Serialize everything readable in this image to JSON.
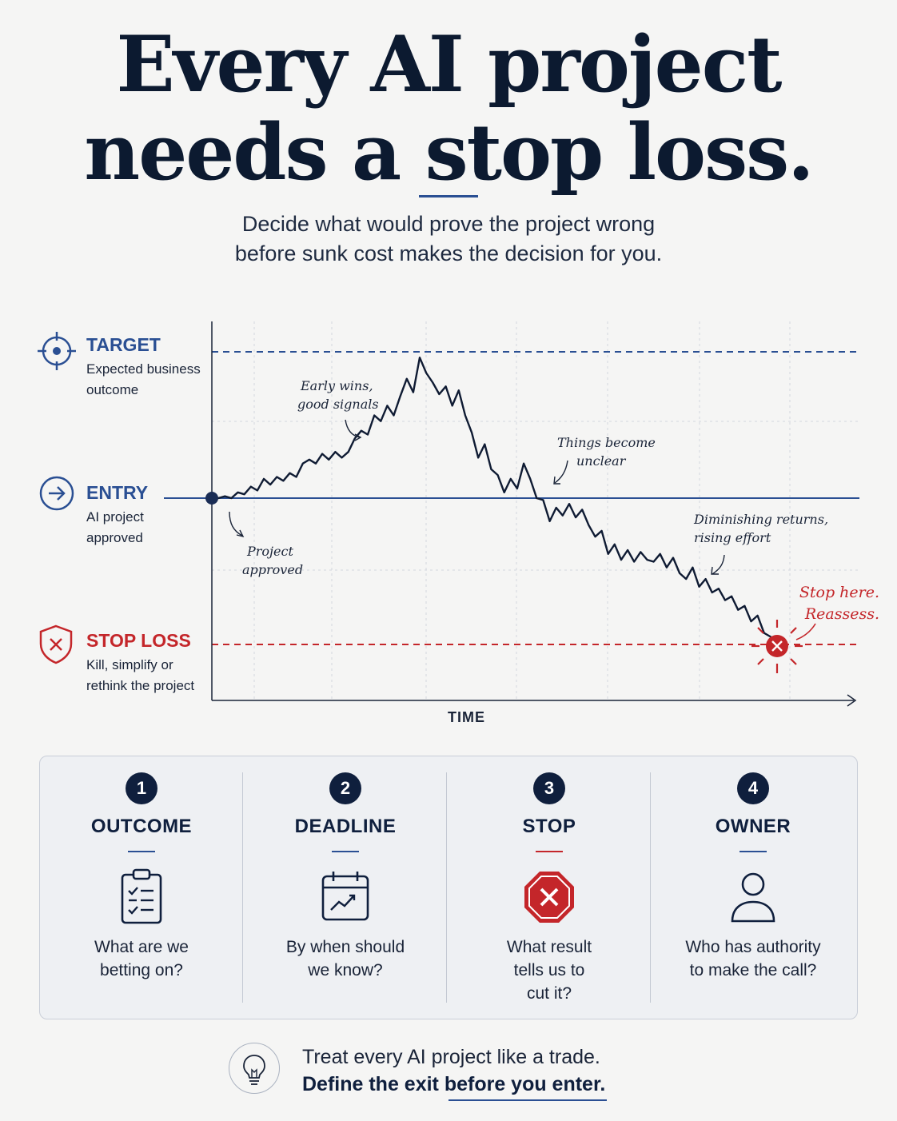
{
  "title_line1": "Every AI project",
  "title_line2": "needs a stop loss.",
  "subtitle_line1": "Decide what would prove the project wrong",
  "subtitle_line2": "before sunk cost makes the decision for you.",
  "levels": {
    "target": {
      "title": "TARGET",
      "desc1": "Expected business",
      "desc2": "outcome",
      "icon": "target-icon"
    },
    "entry": {
      "title": "ENTRY",
      "desc1": "AI project",
      "desc2": "approved",
      "icon": "arrow-right-circle-icon"
    },
    "stop": {
      "title": "STOP LOSS",
      "desc1": "Kill, simplify or",
      "desc2": "rethink the project",
      "icon": "shield-x-icon"
    }
  },
  "annotations": {
    "early1": "Early wins,",
    "early2": "good signals",
    "unclear1": "Things become",
    "unclear2": "unclear",
    "approved1": "Project",
    "approved2": "approved",
    "diminish1": "Diminishing returns,",
    "diminish2": "rising effort",
    "stop1": "Stop here.",
    "stop2": "Reassess."
  },
  "chart_data": {
    "type": "line",
    "xlabel": "TIME",
    "ylabel": "",
    "x": [
      0,
      1,
      2,
      3,
      4,
      5,
      6,
      7,
      8,
      9,
      10,
      11,
      12,
      13,
      14,
      15,
      16,
      17,
      18,
      19,
      20,
      21,
      22,
      23,
      24,
      25,
      26,
      27,
      28,
      29,
      30,
      31,
      32,
      33,
      34,
      35,
      36,
      37,
      38,
      39,
      40,
      41,
      42,
      43,
      44,
      45,
      46,
      47,
      48,
      49,
      50,
      51,
      52,
      53,
      54,
      55,
      56,
      57,
      58,
      59,
      60,
      61,
      62,
      63,
      64,
      65,
      66,
      67,
      68,
      69,
      70,
      71,
      72,
      73,
      74,
      75,
      76,
      77,
      78,
      79,
      80,
      81,
      82,
      83,
      84,
      85,
      86,
      87
    ],
    "values": [
      0.0,
      0.0,
      0.01,
      0.0,
      0.03,
      0.02,
      0.06,
      0.04,
      0.1,
      0.07,
      0.11,
      0.09,
      0.13,
      0.11,
      0.18,
      0.2,
      0.18,
      0.23,
      0.2,
      0.24,
      0.21,
      0.24,
      0.31,
      0.35,
      0.33,
      0.43,
      0.4,
      0.48,
      0.43,
      0.53,
      0.62,
      0.55,
      0.73,
      0.65,
      0.6,
      0.54,
      0.58,
      0.48,
      0.56,
      0.43,
      0.34,
      0.21,
      0.28,
      0.15,
      0.12,
      0.03,
      0.1,
      0.05,
      0.18,
      0.1,
      0.0,
      -0.01,
      -0.12,
      -0.05,
      -0.09,
      -0.03,
      -0.1,
      -0.06,
      -0.14,
      -0.2,
      -0.17,
      -0.29,
      -0.24,
      -0.32,
      -0.27,
      -0.33,
      -0.28,
      -0.32,
      -0.33,
      -0.29,
      -0.36,
      -0.31,
      -0.39,
      -0.42,
      -0.36,
      -0.46,
      -0.42,
      -0.49,
      -0.47,
      -0.53,
      -0.51,
      -0.58,
      -0.56,
      -0.64,
      -0.61,
      -0.7,
      -0.72,
      -0.76
    ],
    "reference_lines": {
      "target": 0.76,
      "entry": 0.0,
      "stop_loss": -0.76
    },
    "ylim": [
      -1.0,
      1.0
    ],
    "grid": true,
    "legend": "none"
  },
  "steps": [
    {
      "num": "1",
      "title": "OUTCOME",
      "icon": "clipboard-checklist-icon",
      "text1": "What are we",
      "text2": "betting on?",
      "text3": ""
    },
    {
      "num": "2",
      "title": "DEADLINE",
      "icon": "calendar-trend-icon",
      "text1": "By when should",
      "text2": "we know?",
      "text3": ""
    },
    {
      "num": "3",
      "title": "STOP",
      "icon": "stop-sign-icon",
      "text1": "What result",
      "text2": "tells us to",
      "text3": "cut it?"
    },
    {
      "num": "4",
      "title": "OWNER",
      "icon": "person-icon",
      "text1": "Who has authority",
      "text2": "to make the call?",
      "text3": ""
    }
  ],
  "footer": {
    "line1": "Treat every AI project like a trade.",
    "line2": "Define the exit before you enter.",
    "icon": "lightbulb-icon"
  },
  "colors": {
    "navy": "#0f1f3d",
    "blue": "#2a4f93",
    "red": "#c4262a"
  }
}
